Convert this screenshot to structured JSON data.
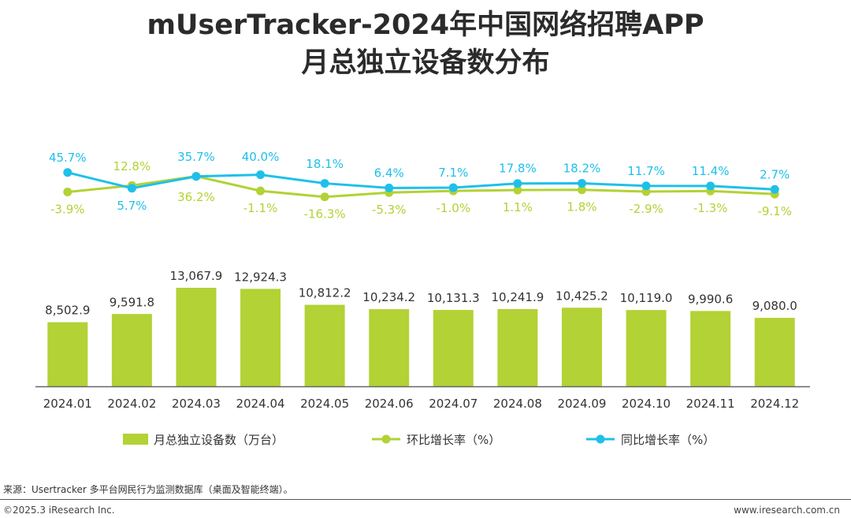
{
  "title": {
    "line1": "mUserTracker-2024年中国网络招聘APP",
    "line2": "月总独立设备数分布"
  },
  "colors": {
    "bar": "#b2d235",
    "mom": "#b2d235",
    "yoy": "#1ec0ea",
    "axis": "#666666"
  },
  "chart_data": {
    "type": "bar",
    "categories": [
      "2024.01",
      "2024.02",
      "2024.03",
      "2024.04",
      "2024.05",
      "2024.06",
      "2024.07",
      "2024.08",
      "2024.09",
      "2024.10",
      "2024.11",
      "2024.12"
    ],
    "series": [
      {
        "name": "月总独立设备数（万台）",
        "kind": "bar",
        "values": [
          8502.9,
          9591.8,
          13067.9,
          12924.3,
          10812.2,
          10234.2,
          10131.3,
          10241.9,
          10425.2,
          10119.0,
          9990.6,
          9080.0
        ],
        "labels": [
          "8,502.9",
          "9,591.8",
          "13,067.9",
          "12,924.3",
          "10,812.2",
          "10,234.2",
          "10,131.3",
          "10,241.9",
          "10,425.2",
          "10,119.0",
          "9,990.6",
          "9,080.0"
        ]
      },
      {
        "name": "环比增长率（%）",
        "kind": "line",
        "values": [
          -3.9,
          12.8,
          36.2,
          -1.1,
          -16.3,
          -5.3,
          -1.0,
          1.1,
          1.8,
          -2.9,
          -1.3,
          -9.1
        ],
        "labels": [
          "-3.9%",
          "12.8%",
          "36.2%",
          "-1.1%",
          "-16.3%",
          "-5.3%",
          "-1.0%",
          "1.1%",
          "1.8%",
          "-2.9%",
          "-1.3%",
          "-9.1%"
        ]
      },
      {
        "name": "同比增长率（%）",
        "kind": "line",
        "values": [
          45.7,
          5.7,
          35.7,
          40.0,
          18.1,
          6.4,
          7.1,
          17.8,
          18.2,
          11.7,
          11.4,
          2.7
        ],
        "labels": [
          "45.7%",
          "5.7%",
          "35.7%",
          "40.0%",
          "18.1%",
          "6.4%",
          "7.1%",
          "17.8%",
          "18.2%",
          "11.7%",
          "11.4%",
          "2.7%"
        ]
      }
    ],
    "legend": "bottom"
  },
  "source": "来源：Usertracker 多平台网民行为监测数据库（桌面及智能终端）。",
  "copyright": "©2025.3 iResearch Inc.",
  "website": "www.iresearch.com.cn"
}
